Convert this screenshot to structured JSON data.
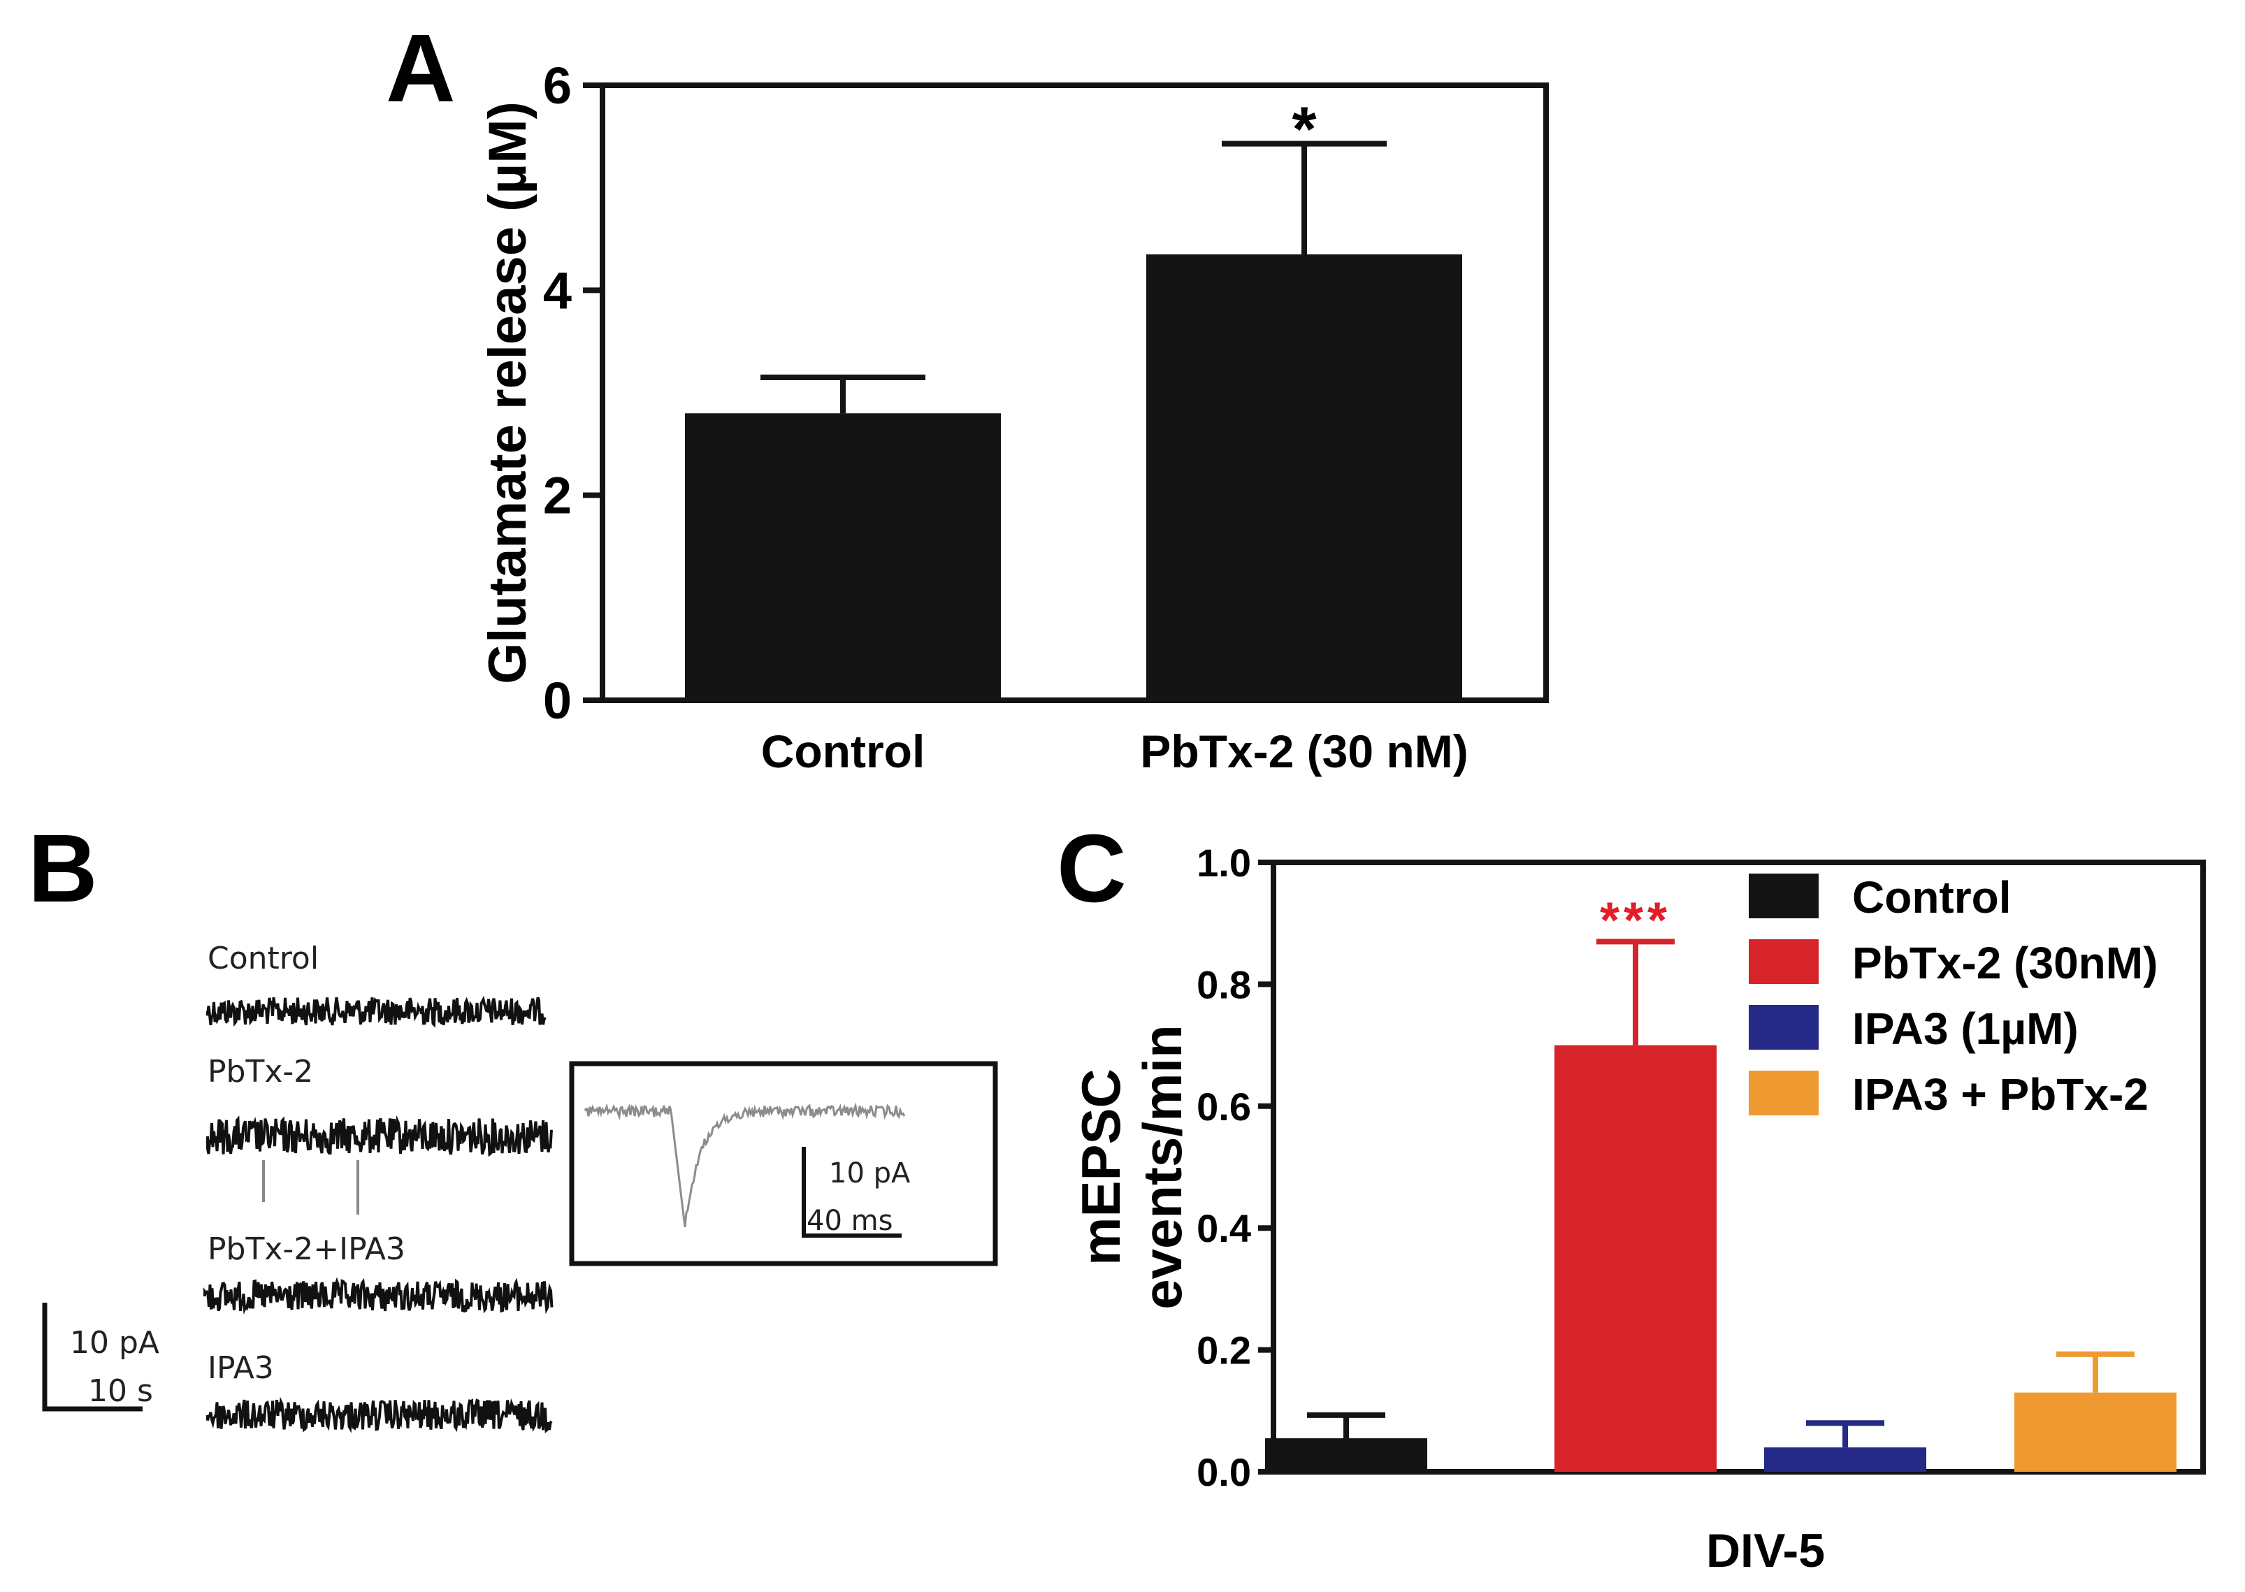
{
  "colors": {
    "black": "#141414",
    "red": "#d7242b",
    "red_text": "#e31e26",
    "blue": "#242a86",
    "orange": "#ef9a31",
    "trace": "#111111",
    "trace_light": "#8c8c8c"
  },
  "panels": {
    "a": {
      "letter": "A"
    },
    "b": {
      "letter": "B",
      "traces": [
        "Control",
        "PbTx-2",
        "PbTx-2+IPA3",
        "IPA3"
      ],
      "scale_bar": {
        "y_label": "10 pA",
        "x_label": "10 s"
      },
      "inset_scale_bar": {
        "y_label": "10 pA",
        "x_label": "40 ms"
      }
    },
    "c": {
      "letter": "C"
    }
  },
  "chart_data": [
    {
      "id": "panel-a",
      "type": "bar",
      "title": "",
      "categories": [
        "Control",
        "PbTx-2 (30 nM)"
      ],
      "values": [
        2.8,
        4.35
      ],
      "errors": [
        0.35,
        1.08
      ],
      "significance": [
        "",
        "*"
      ],
      "colors": [
        "#141414",
        "#141414"
      ],
      "xlabel": "",
      "ylabel": "Glutamate release (µM)",
      "ylim": [
        0,
        6
      ],
      "yticks": [
        "0",
        "2",
        "4",
        "6"
      ],
      "yticks_values": [
        0,
        2,
        4,
        6
      ],
      "grid": false
    },
    {
      "id": "panel-c",
      "type": "bar",
      "title": "",
      "categories": [
        "Control",
        "PbTx-2 (30nM)",
        "IPA3 (1µM)",
        "IPA3 + PbTx-2"
      ],
      "values": [
        0.055,
        0.7,
        0.04,
        0.13
      ],
      "errors": [
        0.038,
        0.17,
        0.04,
        0.063
      ],
      "significance": [
        "",
        "***",
        "",
        ""
      ],
      "colors": [
        "#141414",
        "#d7242b",
        "#242a86",
        "#ef9a31"
      ],
      "xlabel": "DIV-5",
      "ylabel_line1": "mEPSC",
      "ylabel_line2": "events/min",
      "ylim": [
        0,
        1.0
      ],
      "yticks": [
        "0.0",
        "0.2",
        "0.4",
        "0.6",
        "0.8",
        "1.0"
      ],
      "yticks_values": [
        0,
        0.2,
        0.4,
        0.6,
        0.8,
        1.0
      ],
      "legend": [
        "Control",
        "PbTx-2 (30nM)",
        "IPA3 (1µM)",
        "IPA3 + PbTx-2"
      ],
      "legend_position": "top-right",
      "grid": false
    }
  ]
}
